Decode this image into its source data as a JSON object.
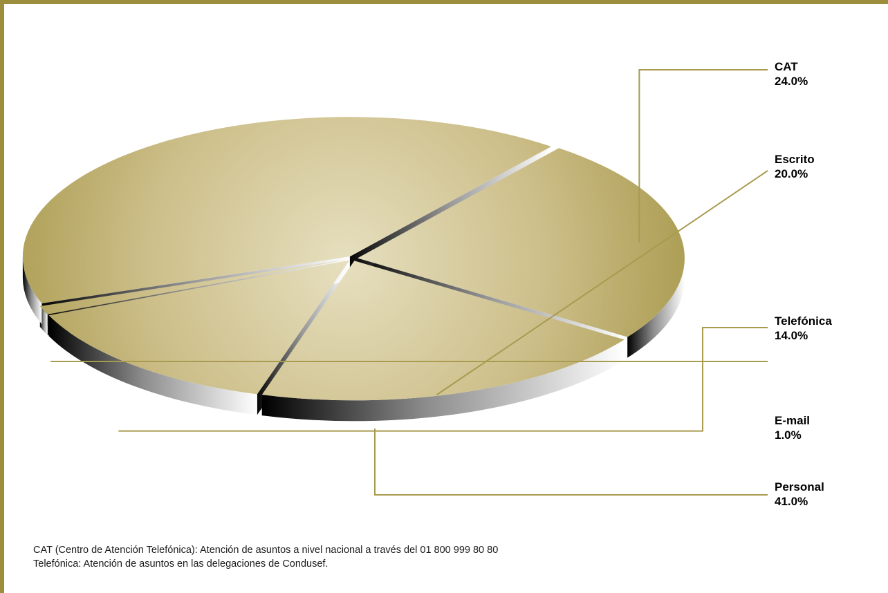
{
  "chart_data": {
    "type": "pie",
    "slices": [
      {
        "label": "CAT",
        "value": 24.0,
        "value_text": "24.0%"
      },
      {
        "label": "Escrito",
        "value": 20.0,
        "value_text": "20.0%"
      },
      {
        "label": "Telefónica",
        "value": 14.0,
        "value_text": "14.0%"
      },
      {
        "label": "E-mail",
        "value": 1.0,
        "value_text": "1.0%"
      },
      {
        "label": "Personal",
        "value": 41.0,
        "value_text": "41.0%"
      }
    ],
    "style": "3d-exploded",
    "legend": "right"
  },
  "notes": [
    "CAT (Centro de Atención Telefónica): Atención de asuntos a nivel nacional a través del 01 800 999 80 80",
    "Telefónica: Atención de asuntos en las delegaciones de Condusef."
  ],
  "colors": {
    "frame": "#9c8e3c",
    "leader": "#a89a4e",
    "slice_light": "#e3dcb8",
    "slice_dark": "#a89a4a"
  }
}
